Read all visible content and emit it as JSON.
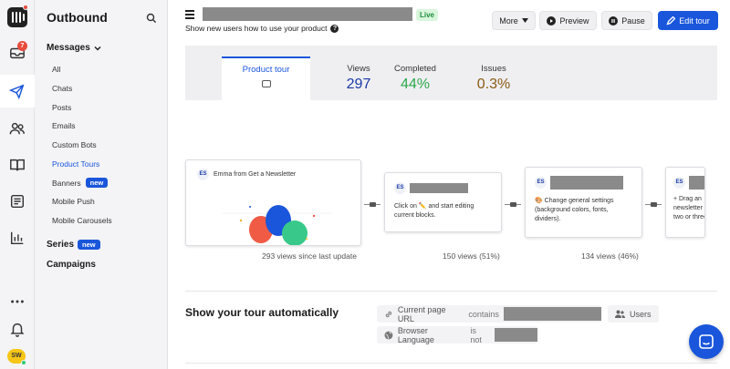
{
  "sidebar": {
    "title": "Outbound",
    "notification_count": "7",
    "avatar_initials": "SW",
    "sections": {
      "messages": "Messages",
      "series": "Series",
      "campaigns": "Campaigns"
    },
    "items": [
      {
        "label": "All"
      },
      {
        "label": "Chats"
      },
      {
        "label": "Posts"
      },
      {
        "label": "Emails"
      },
      {
        "label": "Custom Bots"
      },
      {
        "label": "Product Tours",
        "active": true
      },
      {
        "label": "Banners",
        "badge": "new"
      },
      {
        "label": "Mobile Push"
      },
      {
        "label": "Mobile Carousels"
      }
    ],
    "series_badge": "new"
  },
  "header": {
    "status": "Live",
    "subtitle": "Show new users how to use your product",
    "more_label": "More",
    "preview_label": "Preview",
    "pause_label": "Pause",
    "edit_label": "Edit tour"
  },
  "stats": {
    "tab_label": "Product tour",
    "views_label": "Views",
    "views_value": "297",
    "completed_label": "Completed",
    "completed_value": "44%",
    "issues_label": "Issues",
    "issues_value": "0.3%"
  },
  "flow": {
    "step1": {
      "avatar": "ES",
      "sender": "Emma from Get a Newsletter",
      "views": "293 views since last update"
    },
    "step2": {
      "avatar": "ES",
      "text": "Click on ✏️ and start editing current blocks.",
      "views": "150 views (51%)"
    },
    "step3": {
      "avatar": "ES",
      "text": "🎨 Change general settings (background colors, fonts, dividers).",
      "views": "134 views (46%)"
    },
    "step4": {
      "avatar": "ES",
      "text_line1": "+ Drag an",
      "text_line2": "newsletter",
      "text_line3": "two or three"
    }
  },
  "auto": {
    "title": "Show your tour automatically",
    "rule1_prefix": "Current page URL",
    "rule1_op": "contains",
    "rule2_prefix": "Browser Language",
    "rule2_op": "is not",
    "users_label": "Users"
  },
  "colors": {
    "accent": "#1a56db",
    "live_green": "#1e8e3e",
    "completed_green": "#2ba84a",
    "issues_brown": "#8a5a14"
  }
}
